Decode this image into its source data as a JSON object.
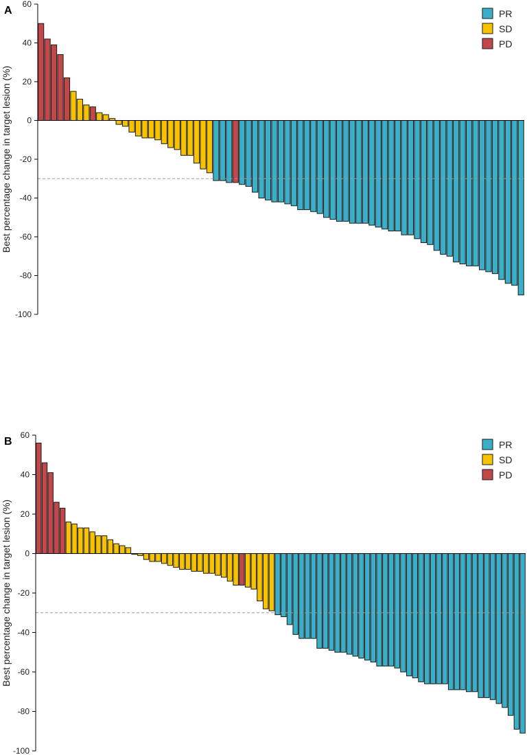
{
  "colors": {
    "PR": "#3BAFC8",
    "SD": "#F7C300",
    "PD": "#C0484A",
    "axis": "#000000",
    "threshold": "#999999"
  },
  "chart_data": [
    {
      "type": "bar",
      "panel_label": "A",
      "title": "",
      "xlabel": "",
      "ylabel": "Best percentage change in target lesion (%)",
      "ylim": [
        -100,
        60
      ],
      "yticks": [
        60,
        40,
        20,
        0,
        -20,
        -40,
        -60,
        -80,
        -100
      ],
      "threshold": -30,
      "legend": [
        "PR",
        "SD",
        "PD"
      ],
      "legend_position": "top-right",
      "values": [
        50,
        42,
        39,
        34,
        22,
        15,
        11,
        8,
        7,
        4,
        3,
        1,
        -2,
        -3,
        -6,
        -8,
        -9,
        -9,
        -10,
        -12,
        -14,
        -15,
        -18,
        -18,
        -22,
        -25,
        -27,
        -31,
        -31,
        -32,
        -32,
        -33,
        -34,
        -37,
        -40,
        -41,
        -42,
        -42,
        -43,
        -44,
        -46,
        -46,
        -47,
        -48,
        -50,
        -51,
        -52,
        -52,
        -53,
        -53,
        -53,
        -54,
        -55,
        -56,
        -57,
        -57,
        -59,
        -59,
        -61,
        -63,
        -64,
        -67,
        -69,
        -70,
        -73,
        -74,
        -75,
        -75,
        -77,
        -78,
        -79,
        -82,
        -84,
        -85,
        -90
      ],
      "categories": [
        "PD",
        "PD",
        "PD",
        "PD",
        "PD",
        "SD",
        "SD",
        "SD",
        "PD",
        "SD",
        "SD",
        "SD",
        "SD",
        "SD",
        "SD",
        "SD",
        "SD",
        "SD",
        "SD",
        "SD",
        "SD",
        "SD",
        "SD",
        "SD",
        "SD",
        "SD",
        "SD",
        "PR",
        "PR",
        "PR",
        "PD",
        "PR",
        "PR",
        "PR",
        "PR",
        "PR",
        "PR",
        "PR",
        "PR",
        "PR",
        "PR",
        "PR",
        "PR",
        "PR",
        "PR",
        "PR",
        "PR",
        "PR",
        "PR",
        "PR",
        "PR",
        "PR",
        "PR",
        "PR",
        "PR",
        "PR",
        "PR",
        "PR",
        "PR",
        "PR",
        "PR",
        "PR",
        "PR",
        "PR",
        "PR",
        "PR",
        "PR",
        "PR",
        "PR",
        "PR",
        "PR",
        "PR",
        "PR",
        "PR",
        "PR"
      ]
    },
    {
      "type": "bar",
      "panel_label": "B",
      "title": "",
      "xlabel": "",
      "ylabel": "Best percentage change in target lesion (%)",
      "ylim": [
        -100,
        60
      ],
      "yticks": [
        60,
        40,
        20,
        0,
        -20,
        -40,
        -60,
        -80,
        -100
      ],
      "threshold": -30,
      "legend": [
        "PR",
        "SD",
        "PD"
      ],
      "legend_position": "top-right",
      "values": [
        56,
        46,
        41,
        26,
        23,
        16,
        15,
        13,
        13,
        11,
        9,
        9,
        7,
        5,
        4,
        3,
        0,
        -1,
        -3,
        -4,
        -4,
        -5,
        -6,
        -7,
        -8,
        -8,
        -9,
        -9,
        -10,
        -10,
        -11,
        -12,
        -14,
        -16,
        -16,
        -17,
        -18,
        -24,
        -28,
        -29,
        -31,
        -32,
        -36,
        -41,
        -43,
        -43,
        -43,
        -48,
        -48,
        -49,
        -50,
        -50,
        -51,
        -52,
        -53,
        -54,
        -55,
        -57,
        -57,
        -57,
        -58,
        -60,
        -62,
        -63,
        -65,
        -66,
        -66,
        -66,
        -66,
        -69,
        -69,
        -69,
        -70,
        -70,
        -73,
        -73,
        -74,
        -76,
        -78,
        -82,
        -89,
        -91
      ],
      "categories": [
        "PD",
        "PD",
        "PD",
        "PD",
        "PD",
        "SD",
        "SD",
        "SD",
        "SD",
        "SD",
        "SD",
        "SD",
        "SD",
        "SD",
        "SD",
        "SD",
        "SD",
        "SD",
        "SD",
        "SD",
        "SD",
        "SD",
        "SD",
        "SD",
        "SD",
        "SD",
        "SD",
        "SD",
        "SD",
        "SD",
        "SD",
        "SD",
        "SD",
        "SD",
        "PD",
        "SD",
        "SD",
        "SD",
        "SD",
        "SD",
        "PR",
        "PR",
        "PR",
        "PR",
        "PR",
        "PR",
        "PR",
        "PR",
        "PR",
        "PR",
        "PR",
        "PR",
        "PR",
        "PR",
        "PR",
        "PR",
        "PR",
        "PR",
        "PR",
        "PR",
        "PR",
        "PR",
        "PR",
        "PR",
        "PR",
        "PR",
        "PR",
        "PR",
        "PR",
        "PR",
        "PR",
        "PR",
        "PR",
        "PR",
        "PR",
        "PR",
        "PR",
        "PR",
        "PR",
        "PR",
        "PR",
        "PR"
      ]
    }
  ]
}
